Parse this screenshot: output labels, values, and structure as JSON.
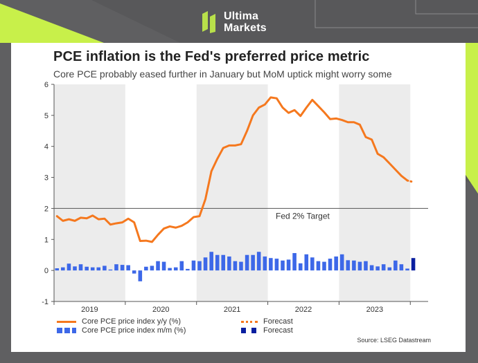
{
  "brand": {
    "line1": "Ultima",
    "line2": "Markets",
    "logo_color": "#b8e04a",
    "icon": "ultima-markets-logo-icon"
  },
  "chart_data": {
    "type": "line",
    "title": "PCE inflation is the Fed's preferred price metric",
    "subtitle": "Core PCE probably eased further in January but MoM uptick might worry some",
    "x_tick_labels": [
      "2019",
      "2020",
      "2021",
      "2022",
      "2023"
    ],
    "y_ticks": [
      -1,
      0,
      1,
      2,
      3,
      4,
      5,
      6
    ],
    "ylim": [
      -1,
      6
    ],
    "xlim": [
      2019.0,
      2024.25
    ],
    "grid": false,
    "shaded_years": [
      2019,
      2021,
      2023
    ],
    "reference_line": {
      "value": 2,
      "label": "Fed 2% Target"
    },
    "series": [
      {
        "name": "Core PCE price index y/y (%)",
        "type": "line",
        "color": "#f5781e",
        "x": [
          2019.0,
          2019.083,
          2019.167,
          2019.25,
          2019.333,
          2019.417,
          2019.5,
          2019.583,
          2019.667,
          2019.75,
          2019.833,
          2019.917,
          2020.0,
          2020.083,
          2020.167,
          2020.25,
          2020.333,
          2020.417,
          2020.5,
          2020.583,
          2020.667,
          2020.75,
          2020.833,
          2020.917,
          2021.0,
          2021.083,
          2021.167,
          2021.25,
          2021.333,
          2021.417,
          2021.5,
          2021.583,
          2021.667,
          2021.75,
          2021.833,
          2021.917,
          2022.0,
          2022.083,
          2022.167,
          2022.25,
          2022.333,
          2022.417,
          2022.5,
          2022.583,
          2022.667,
          2022.75,
          2022.833,
          2022.917,
          2023.0,
          2023.083,
          2023.167,
          2023.25,
          2023.333,
          2023.417,
          2023.5,
          2023.583,
          2023.667,
          2023.75,
          2023.833,
          2023.917
        ],
        "values": [
          1.75,
          1.6,
          1.65,
          1.6,
          1.7,
          1.68,
          1.77,
          1.65,
          1.67,
          1.48,
          1.52,
          1.55,
          1.67,
          1.55,
          0.95,
          0.96,
          0.92,
          1.15,
          1.35,
          1.42,
          1.38,
          1.44,
          1.55,
          1.72,
          1.75,
          2.3,
          3.2,
          3.6,
          3.95,
          4.03,
          4.03,
          4.07,
          4.5,
          5.0,
          5.25,
          5.35,
          5.58,
          5.55,
          5.25,
          5.08,
          5.17,
          4.98,
          5.25,
          5.5,
          5.3,
          5.1,
          4.88,
          4.9,
          4.85,
          4.78,
          4.78,
          4.7,
          4.3,
          4.22,
          3.76,
          3.65,
          3.45,
          3.25,
          3.05,
          2.9
        ]
      },
      {
        "name": "Forecast",
        "type": "line-dotted",
        "color": "#f5781e",
        "x": [
          2023.917,
          2024.0
        ],
        "values": [
          2.9,
          2.85
        ]
      },
      {
        "name": "Core PCE price index m/m (%)",
        "type": "bar",
        "color": "#3d68e8",
        "x": [
          2019.0,
          2019.083,
          2019.167,
          2019.25,
          2019.333,
          2019.417,
          2019.5,
          2019.583,
          2019.667,
          2019.75,
          2019.833,
          2019.917,
          2020.0,
          2020.083,
          2020.167,
          2020.25,
          2020.333,
          2020.417,
          2020.5,
          2020.583,
          2020.667,
          2020.75,
          2020.833,
          2020.917,
          2021.0,
          2021.083,
          2021.167,
          2021.25,
          2021.333,
          2021.417,
          2021.5,
          2021.583,
          2021.667,
          2021.75,
          2021.833,
          2021.917,
          2022.0,
          2022.083,
          2022.167,
          2022.25,
          2022.333,
          2022.417,
          2022.5,
          2022.583,
          2022.667,
          2022.75,
          2022.833,
          2022.917,
          2023.0,
          2023.083,
          2023.167,
          2023.25,
          2023.333,
          2023.417,
          2023.5,
          2023.583,
          2023.667,
          2023.75,
          2023.833,
          2023.917
        ],
        "values": [
          0.07,
          0.1,
          0.22,
          0.13,
          0.2,
          0.12,
          0.1,
          0.1,
          0.15,
          0.03,
          0.2,
          0.18,
          0.17,
          -0.1,
          -0.35,
          0.12,
          0.15,
          0.3,
          0.28,
          0.08,
          0.1,
          0.3,
          0.05,
          0.32,
          0.3,
          0.42,
          0.6,
          0.5,
          0.5,
          0.45,
          0.3,
          0.28,
          0.5,
          0.5,
          0.6,
          0.45,
          0.4,
          0.38,
          0.32,
          0.35,
          0.56,
          0.23,
          0.52,
          0.42,
          0.3,
          0.28,
          0.38,
          0.45,
          0.52,
          0.33,
          0.32,
          0.28,
          0.3,
          0.17,
          0.13,
          0.2,
          0.1,
          0.32,
          0.2,
          0.06
        ]
      },
      {
        "name": "Forecast",
        "type": "bar",
        "color": "#0a1fa0",
        "x": [
          2024.0
        ],
        "values": [
          0.4
        ]
      }
    ],
    "legend": [
      {
        "label": "Core PCE price index y/y (%)",
        "style": "line",
        "color": "#f5781e",
        "icon": "solid-line-swatch"
      },
      {
        "label": "Forecast",
        "style": "dotted-line",
        "color": "#f5781e",
        "icon": "dotted-line-swatch"
      },
      {
        "label": "Core PCE price index m/m (%)",
        "style": "bars",
        "color": "#3d68e8",
        "icon": "bar-swatch"
      },
      {
        "label": "Forecast",
        "style": "bars",
        "color": "#0a1fa0",
        "icon": "bar-swatch"
      }
    ],
    "source": "Source: LSEG Datastream",
    "colors": {
      "shade": "#ececec",
      "reference_line": "#666666",
      "axis": "#555555"
    }
  }
}
